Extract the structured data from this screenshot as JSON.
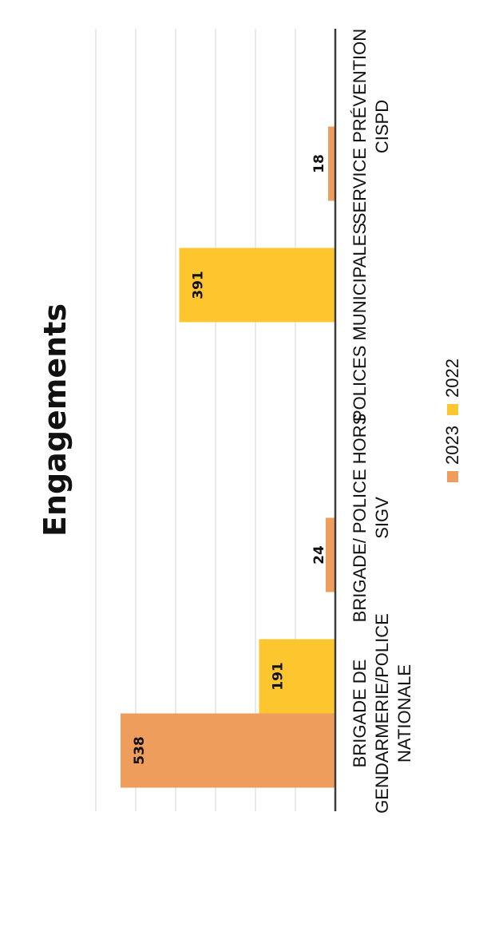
{
  "chart_data": {
    "type": "bar",
    "title": "Engagements",
    "categories": [
      [
        "BRIGADE DE",
        "GENDARMERIE/POLICE",
        "NATIONALE"
      ],
      [
        "BRIGADE/ POLICE HORS",
        "SIGV"
      ],
      [
        "POLICES MUNICIPALES"
      ],
      [
        "SERVICE PRÉVENTION",
        "CISPD"
      ]
    ],
    "series": [
      {
        "name": "2023",
        "color": "#ef9d5c",
        "values": [
          538,
          24,
          null,
          18
        ]
      },
      {
        "name": "2022",
        "color": "#fdc62f",
        "values": [
          191,
          null,
          391,
          null
        ]
      }
    ],
    "ylim": [
      0,
      600
    ],
    "grid": true,
    "legend": "bottom",
    "orientation": "rotated-90-ccw"
  }
}
